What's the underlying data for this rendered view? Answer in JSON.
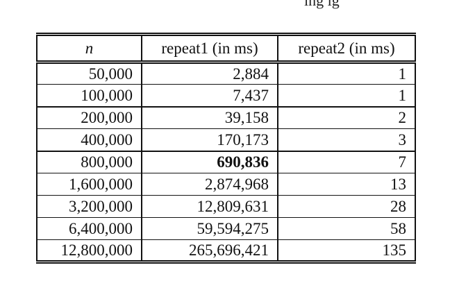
{
  "top_text": "ing ig",
  "table": {
    "headers": [
      "n",
      "repeat1 (in ms)",
      "repeat2 (in ms)"
    ],
    "rows": [
      [
        "50,000",
        "2,884",
        "1"
      ],
      [
        "100,000",
        "7,437",
        "1"
      ],
      [
        "200,000",
        "39,158",
        "2"
      ],
      [
        "400,000",
        "170,173",
        "3"
      ],
      [
        "800,000",
        "690,836",
        "7"
      ],
      [
        "1,600,000",
        "2,874,968",
        "13"
      ],
      [
        "3,200,000",
        "12,809,631",
        "28"
      ],
      [
        "6,400,000",
        "59,594,275",
        "58"
      ],
      [
        "12,800,000",
        "265,696,421",
        "135"
      ]
    ]
  }
}
